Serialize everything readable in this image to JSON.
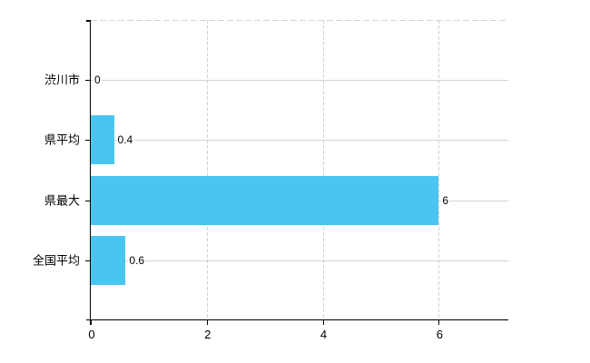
{
  "chart_data": {
    "type": "bar",
    "orientation": "horizontal",
    "title": "",
    "xlabel": "",
    "ylabel": "",
    "categories": [
      "渋川市",
      "県平均",
      "県最大",
      "全国平均"
    ],
    "values": [
      0,
      0.4,
      6,
      0.6
    ],
    "value_labels": [
      "0",
      "0.4",
      "6",
      "0.6"
    ],
    "x_ticks": [
      0,
      2,
      4,
      6
    ],
    "x_tick_labels": [
      "0",
      "2",
      "4",
      "6"
    ],
    "xlim": [
      0,
      7.2
    ],
    "grid": true,
    "grid_style": "dashed-vertical",
    "legend": false,
    "colors": {
      "bar": "#49c5f0",
      "grid": "#cfd5cf",
      "row_line": "#cfd5cf",
      "axis": "#000000",
      "text": "#000000",
      "background": "#ffffff"
    }
  }
}
